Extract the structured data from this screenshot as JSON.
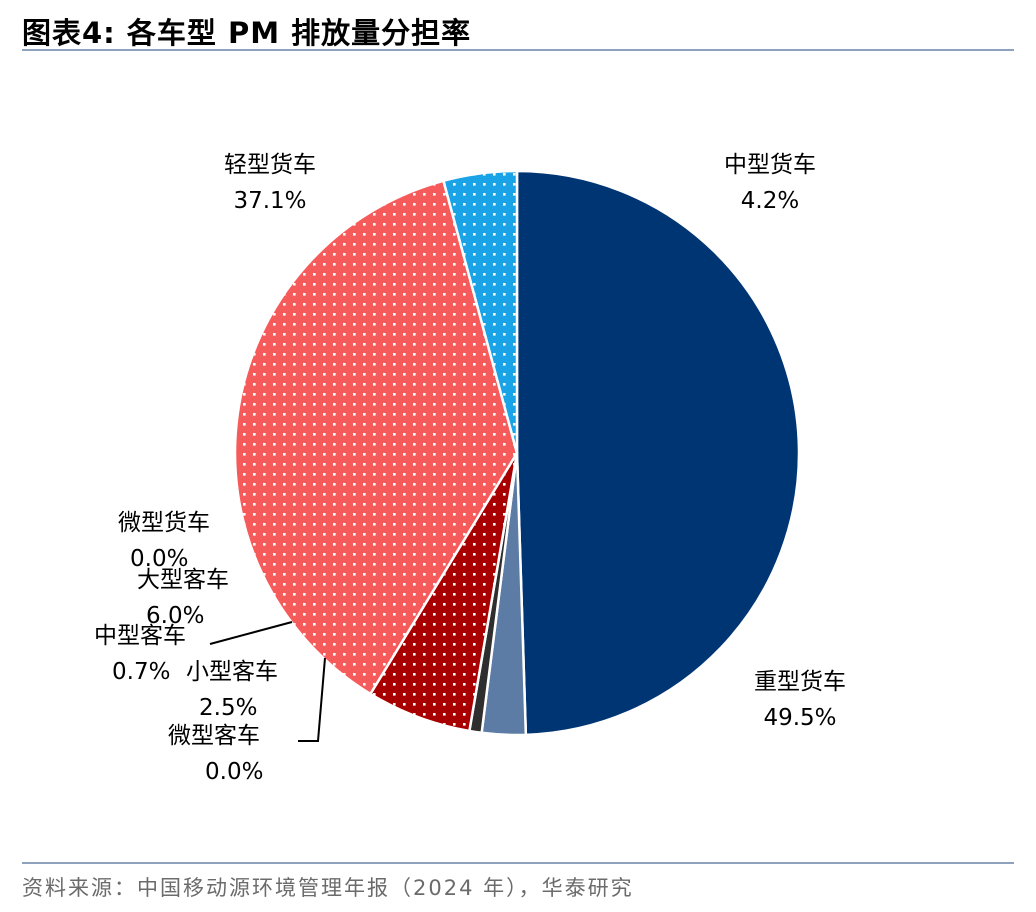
{
  "header": {
    "title": "图表4:   各车型 PM 排放量分担率"
  },
  "footer": {
    "source": "资料来源：中国移动源环境管理年报（2024 年），华泰研究"
  },
  "colors": {
    "heavy_truck": "#003574",
    "medium_truck": "#1aa3e6",
    "light_truck": "#f65b5b",
    "micro_truck": "#8c1010",
    "large_bus": "#a80000",
    "medium_bus": "#2e2e2e",
    "small_bus": "#5d7ca5",
    "micro_bus": "#99a9c3",
    "rules": "#8fa2bd"
  },
  "chart_data": {
    "type": "pie",
    "title": "各车型 PM 排放量分担率",
    "start": "12 o'clock",
    "direction": "clockwise",
    "slices": [
      {
        "key": "heavy_truck",
        "label": "重型货车",
        "value": 49.5,
        "display": "49.5%",
        "pattern": "solid"
      },
      {
        "key": "micro_bus",
        "label": "微型客车",
        "value": 0.0,
        "display": "0.0%",
        "pattern": "solid"
      },
      {
        "key": "small_bus",
        "label": "小型客车",
        "value": 2.5,
        "display": "2.5%",
        "pattern": "solid"
      },
      {
        "key": "medium_bus",
        "label": "中型客车",
        "value": 0.7,
        "display": "0.7%",
        "pattern": "solid"
      },
      {
        "key": "large_bus",
        "label": "大型客车",
        "value": 6.0,
        "display": "6.0%",
        "pattern": "dots"
      },
      {
        "key": "micro_truck",
        "label": "微型货车",
        "value": 0.0,
        "display": "0.0%",
        "pattern": "dots"
      },
      {
        "key": "light_truck",
        "label": "轻型货车",
        "value": 37.1,
        "display": "37.1%",
        "pattern": "dots"
      },
      {
        "key": "medium_truck",
        "label": "中型货车",
        "value": 4.2,
        "display": "4.2%",
        "pattern": "dots"
      }
    ]
  }
}
